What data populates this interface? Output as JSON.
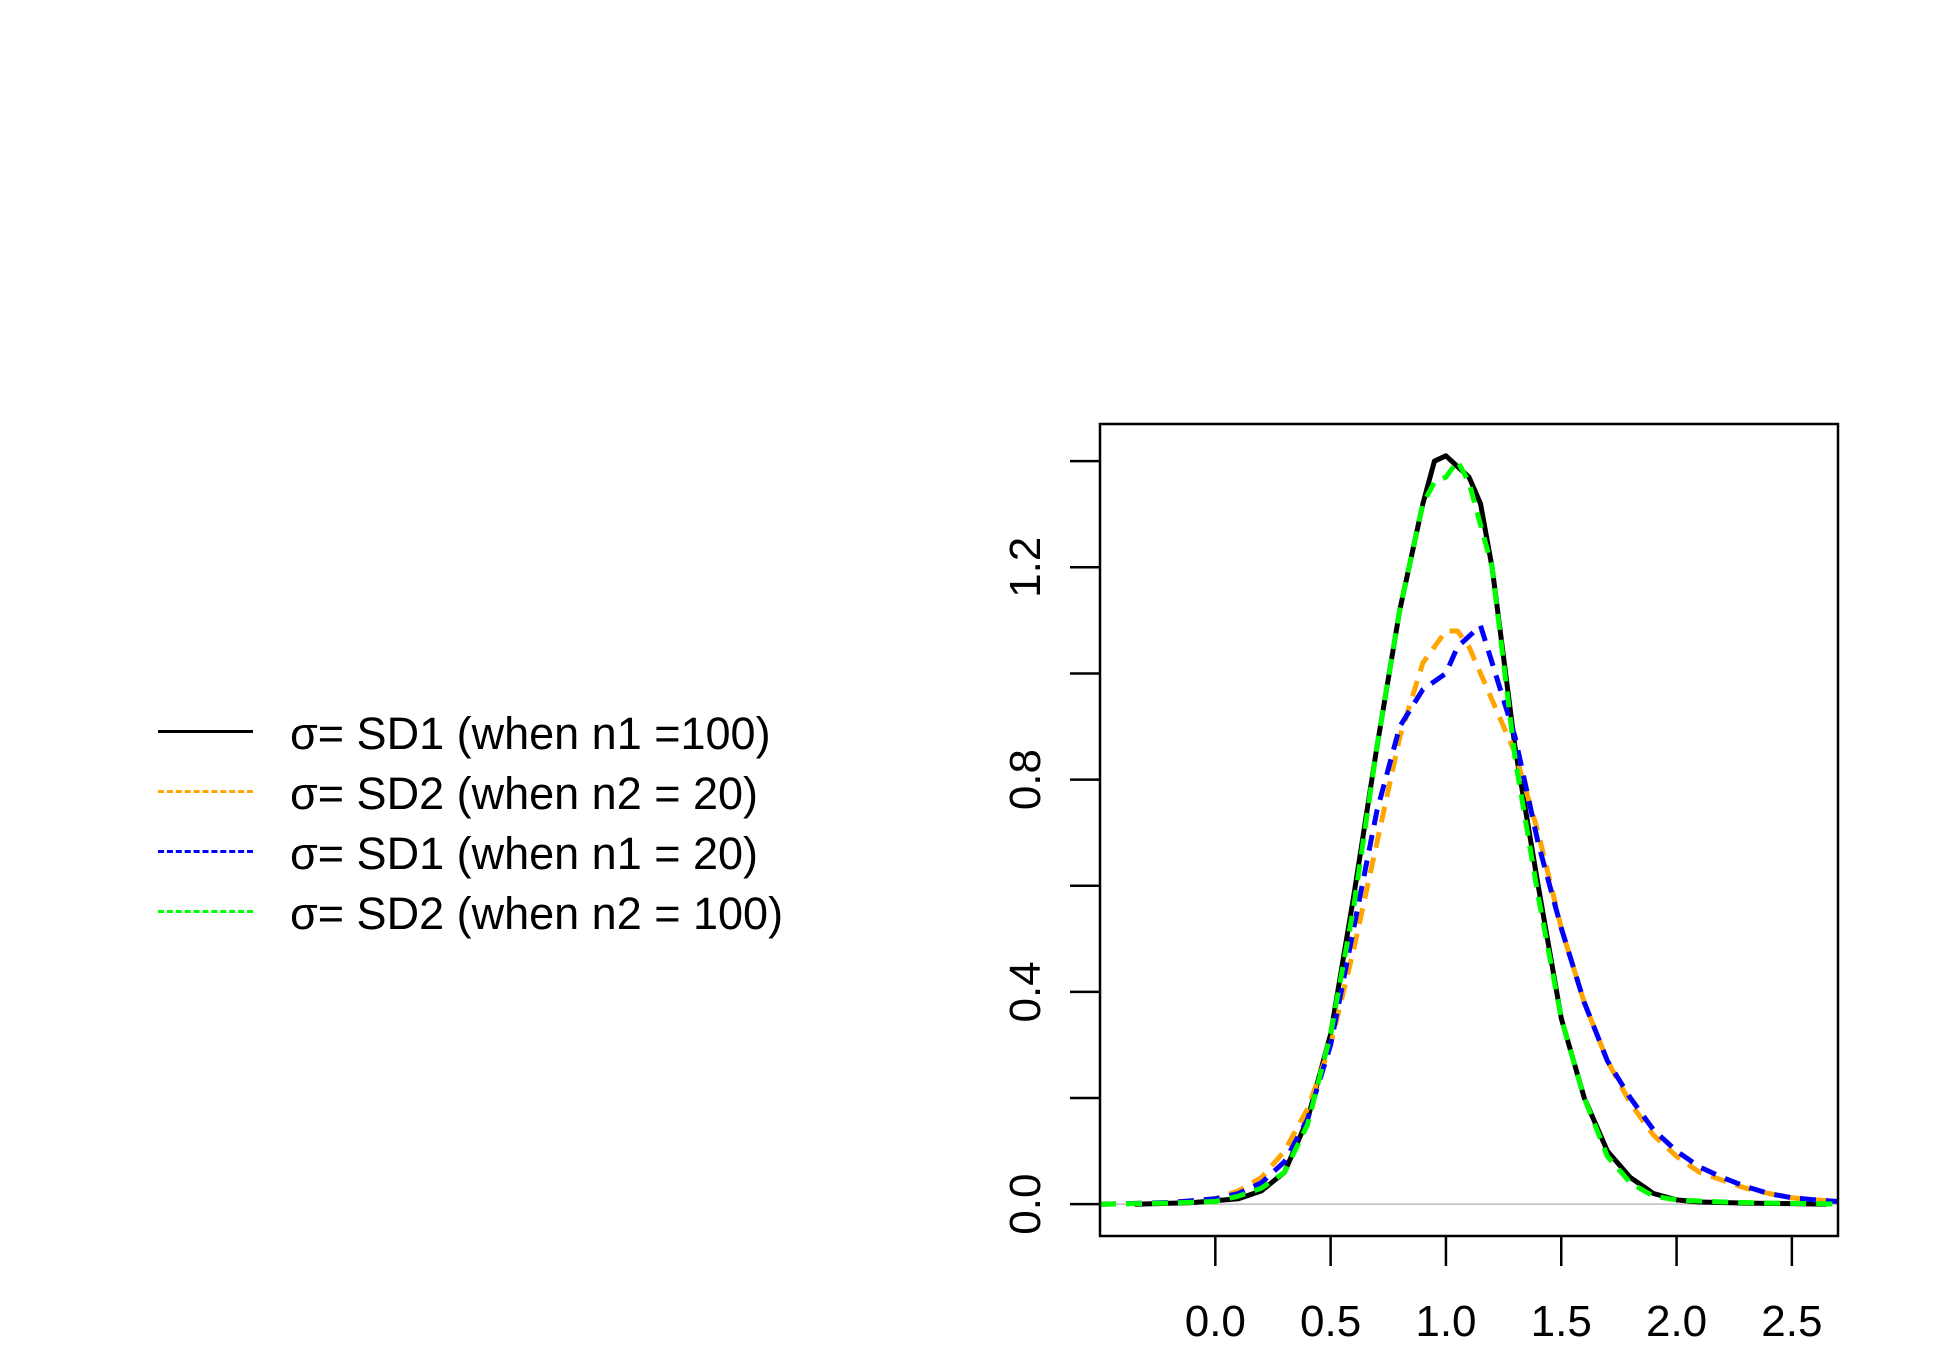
{
  "chart_data": {
    "type": "line",
    "title": "",
    "xlabel": "",
    "ylabel": "",
    "xlim": [
      -0.5,
      2.7
    ],
    "ylim": [
      -0.06,
      1.47
    ],
    "x_ticks": [
      0.0,
      0.5,
      1.0,
      1.5,
      2.0,
      2.5
    ],
    "x_tick_labels": [
      "0.0",
      "0.5",
      "1.0",
      "1.5",
      "2.0",
      "2.5"
    ],
    "y_ticks": [
      0.0,
      0.2,
      0.4,
      0.6,
      0.8,
      1.0,
      1.2,
      1.4
    ],
    "y_tick_labels": [
      "0.0",
      "",
      "0.4",
      "",
      "0.8",
      "",
      "1.2",
      ""
    ],
    "grid": false,
    "baseline_y": 0,
    "legend_position": "left, outside the plot",
    "series": [
      {
        "name": "σ= SD1 (when n1 =100)",
        "color": "#000000",
        "dash": "solid",
        "x": [
          -0.35,
          -0.1,
          0.1,
          0.2,
          0.3,
          0.4,
          0.5,
          0.6,
          0.7,
          0.8,
          0.9,
          0.95,
          1.0,
          1.05,
          1.1,
          1.15,
          1.2,
          1.3,
          1.4,
          1.5,
          1.6,
          1.7,
          1.8,
          1.9,
          2.0,
          2.1,
          2.3,
          2.5,
          2.65
        ],
        "y": [
          0.0,
          0.003,
          0.01,
          0.025,
          0.06,
          0.16,
          0.32,
          0.58,
          0.86,
          1.12,
          1.32,
          1.4,
          1.41,
          1.39,
          1.37,
          1.32,
          1.2,
          0.86,
          0.6,
          0.35,
          0.2,
          0.1,
          0.05,
          0.02,
          0.008,
          0.004,
          0.002,
          0.001,
          0.0
        ]
      },
      {
        "name": "σ= SD2 (when n2 = 20)",
        "color": "#FFA500",
        "dash": "dashed",
        "x": [
          -0.5,
          -0.2,
          0.0,
          0.1,
          0.2,
          0.3,
          0.4,
          0.5,
          0.6,
          0.7,
          0.8,
          0.9,
          1.0,
          1.05,
          1.1,
          1.2,
          1.3,
          1.4,
          1.5,
          1.6,
          1.7,
          1.8,
          1.9,
          2.0,
          2.1,
          2.2,
          2.3,
          2.4,
          2.5,
          2.6,
          2.7
        ],
        "y": [
          0.0,
          0.003,
          0.01,
          0.025,
          0.05,
          0.1,
          0.18,
          0.3,
          0.48,
          0.68,
          0.88,
          1.02,
          1.08,
          1.08,
          1.05,
          0.95,
          0.85,
          0.7,
          0.52,
          0.38,
          0.27,
          0.19,
          0.13,
          0.09,
          0.06,
          0.045,
          0.03,
          0.02,
          0.012,
          0.008,
          0.005
        ]
      },
      {
        "name": "σ= SD1 (when n1 = 20)",
        "color": "#0000FF",
        "dash": "dashed",
        "x": [
          -0.5,
          -0.2,
          0.0,
          0.1,
          0.2,
          0.3,
          0.4,
          0.5,
          0.6,
          0.7,
          0.8,
          0.9,
          1.0,
          1.05,
          1.1,
          1.15,
          1.2,
          1.3,
          1.4,
          1.5,
          1.6,
          1.7,
          1.8,
          1.9,
          2.0,
          2.1,
          2.2,
          2.3,
          2.4,
          2.5,
          2.6,
          2.7
        ],
        "y": [
          0.0,
          0.003,
          0.01,
          0.02,
          0.04,
          0.08,
          0.16,
          0.3,
          0.52,
          0.74,
          0.9,
          0.97,
          1.0,
          1.05,
          1.07,
          1.09,
          1.02,
          0.88,
          0.68,
          0.52,
          0.38,
          0.27,
          0.2,
          0.14,
          0.1,
          0.07,
          0.05,
          0.033,
          0.02,
          0.012,
          0.008,
          0.005
        ]
      },
      {
        "name": "σ= SD2 (when n2 = 100)",
        "color": "#00FF00",
        "dash": "dashed",
        "x": [
          -0.5,
          -0.2,
          0.0,
          0.1,
          0.2,
          0.3,
          0.4,
          0.5,
          0.6,
          0.7,
          0.8,
          0.9,
          0.95,
          1.0,
          1.05,
          1.1,
          1.2,
          1.3,
          1.4,
          1.5,
          1.6,
          1.7,
          1.8,
          1.9,
          2.0,
          2.2,
          2.4,
          2.6,
          2.7
        ],
        "y": [
          0.0,
          0.002,
          0.005,
          0.015,
          0.03,
          0.06,
          0.15,
          0.32,
          0.56,
          0.86,
          1.12,
          1.32,
          1.36,
          1.37,
          1.4,
          1.36,
          1.2,
          0.84,
          0.58,
          0.35,
          0.2,
          0.09,
          0.04,
          0.015,
          0.008,
          0.004,
          0.002,
          0.001,
          0.0
        ]
      }
    ]
  }
}
